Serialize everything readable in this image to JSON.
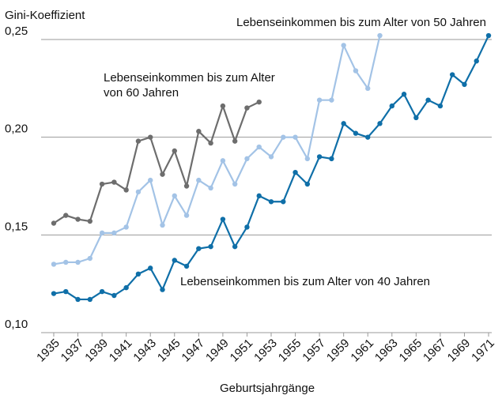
{
  "chart_data": {
    "type": "line",
    "y_label": "Gini-Koeffizient",
    "x_label": "Geburtsjahrgänge",
    "x": [
      1935,
      1936,
      1937,
      1938,
      1939,
      1940,
      1941,
      1942,
      1943,
      1944,
      1945,
      1946,
      1947,
      1948,
      1949,
      1950,
      1951,
      1952,
      1953,
      1954,
      1955,
      1956,
      1957,
      1958,
      1959,
      1960,
      1961,
      1962,
      1963,
      1964,
      1965,
      1966,
      1967,
      1968,
      1969,
      1970,
      1971
    ],
    "xlim": [
      1934,
      1972
    ],
    "xticks": [
      1935,
      1937,
      1939,
      1941,
      1943,
      1945,
      1947,
      1949,
      1951,
      1953,
      1955,
      1957,
      1959,
      1961,
      1963,
      1965,
      1967,
      1969,
      1971
    ],
    "ylim": [
      0.1,
      0.25
    ],
    "yticks": [
      {
        "value": 0.1,
        "label": "0,10"
      },
      {
        "value": 0.15,
        "label": "0,15"
      },
      {
        "value": 0.2,
        "label": "0,20"
      },
      {
        "value": 0.25,
        "label": "0,25"
      }
    ],
    "grid": true,
    "series": [
      {
        "name": "Lebenseinkommen bis zum Alter von 40 Jahren",
        "color": "#0f6fa8",
        "values": [
          0.12,
          0.121,
          0.117,
          0.117,
          0.121,
          0.119,
          0.123,
          0.13,
          0.133,
          0.122,
          0.137,
          0.134,
          0.143,
          0.144,
          0.158,
          0.144,
          0.154,
          0.17,
          0.167,
          0.167,
          0.182,
          0.176,
          0.19,
          0.189,
          0.207,
          0.202,
          0.2,
          0.207,
          0.216,
          0.222,
          0.21,
          0.219,
          0.216,
          0.232,
          0.227,
          0.239,
          0.252
        ]
      },
      {
        "name": "Lebenseinkommen bis zum Alter von 50 Jahren",
        "color": "#a3c3e6",
        "values": [
          0.135,
          0.136,
          0.136,
          0.138,
          0.151,
          0.151,
          0.154,
          0.172,
          0.178,
          0.155,
          0.17,
          0.16,
          0.178,
          0.174,
          0.188,
          0.176,
          0.189,
          0.195,
          0.19,
          0.2,
          0.2,
          0.189,
          0.219,
          0.219,
          0.247,
          0.234,
          0.225,
          0.252,
          null,
          null,
          null,
          null,
          null,
          null,
          null,
          null,
          null
        ]
      },
      {
        "name": "Lebenseinkommen bis zum Alter von 60 Jahren",
        "color": "#6d6d6d",
        "values": [
          0.156,
          0.16,
          0.158,
          0.157,
          0.176,
          0.177,
          0.173,
          0.198,
          0.2,
          0.181,
          0.193,
          0.175,
          0.203,
          0.197,
          0.216,
          0.198,
          0.215,
          0.218,
          null,
          null,
          null,
          null,
          null,
          null,
          null,
          null,
          null,
          null,
          null,
          null,
          null,
          null,
          null,
          null,
          null,
          null,
          null
        ]
      }
    ]
  }
}
